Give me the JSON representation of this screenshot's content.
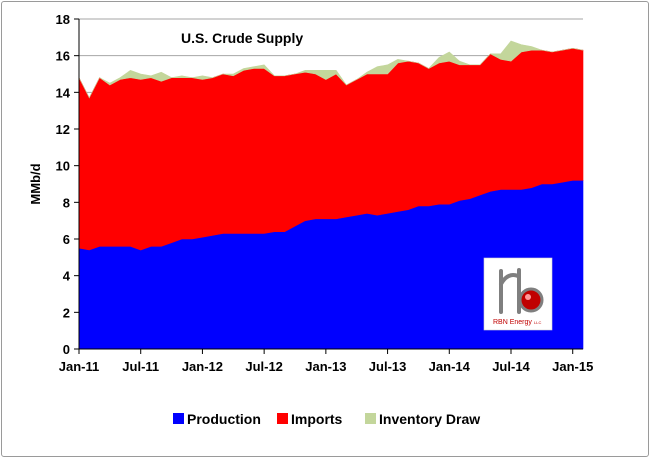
{
  "chart_data": {
    "type": "area",
    "stacked": true,
    "title": "U.S. Crude Supply",
    "ylabel": "MMb/d",
    "xlabel": "",
    "ylim": [
      0,
      18
    ],
    "yticks": [
      0,
      2,
      4,
      6,
      8,
      10,
      12,
      14,
      16,
      18
    ],
    "grid": "horizontal",
    "legend_position": "bottom",
    "x_tick_labels": [
      "Jan-11",
      "Jul-11",
      "Jan-12",
      "Jul-12",
      "Jan-13",
      "Jul-13",
      "Jan-14",
      "Jul-14",
      "Jan-15"
    ],
    "x": [
      "2011-01",
      "2011-02",
      "2011-03",
      "2011-04",
      "2011-05",
      "2011-06",
      "2011-07",
      "2011-08",
      "2011-09",
      "2011-10",
      "2011-11",
      "2011-12",
      "2012-01",
      "2012-02",
      "2012-03",
      "2012-04",
      "2012-05",
      "2012-06",
      "2012-07",
      "2012-08",
      "2012-09",
      "2012-10",
      "2012-11",
      "2012-12",
      "2013-01",
      "2013-02",
      "2013-03",
      "2013-04",
      "2013-05",
      "2013-06",
      "2013-07",
      "2013-08",
      "2013-09",
      "2013-10",
      "2013-11",
      "2013-12",
      "2014-01",
      "2014-02",
      "2014-03",
      "2014-04",
      "2014-05",
      "2014-06",
      "2014-07",
      "2014-08",
      "2014-09",
      "2014-10",
      "2014-11",
      "2014-12",
      "2015-01",
      "2015-02"
    ],
    "series": [
      {
        "name": "Production",
        "color": "#0000ff",
        "values": [
          5.5,
          5.4,
          5.6,
          5.6,
          5.6,
          5.6,
          5.4,
          5.6,
          5.6,
          5.8,
          6.0,
          6.0,
          6.1,
          6.2,
          6.3,
          6.3,
          6.3,
          6.3,
          6.3,
          6.4,
          6.4,
          6.7,
          7.0,
          7.1,
          7.1,
          7.1,
          7.2,
          7.3,
          7.4,
          7.3,
          7.4,
          7.5,
          7.6,
          7.8,
          7.8,
          7.9,
          7.9,
          8.1,
          8.2,
          8.4,
          8.6,
          8.7,
          8.7,
          8.7,
          8.8,
          9.0,
          9.0,
          9.1,
          9.2,
          9.2
        ]
      },
      {
        "name": "Imports",
        "color": "#ff0000",
        "values": [
          9.3,
          8.3,
          9.2,
          8.8,
          9.1,
          9.2,
          9.3,
          9.2,
          9.0,
          9.0,
          8.8,
          8.8,
          8.6,
          8.6,
          8.7,
          8.6,
          8.9,
          9.0,
          9.0,
          8.5,
          8.5,
          8.3,
          8.1,
          7.9,
          7.6,
          7.9,
          7.2,
          7.4,
          7.6,
          7.7,
          7.6,
          8.1,
          8.1,
          7.8,
          7.5,
          7.7,
          7.8,
          7.4,
          7.3,
          7.1,
          7.5,
          7.1,
          7.0,
          7.5,
          7.5,
          7.3,
          7.2,
          7.2,
          7.2,
          7.1
        ]
      },
      {
        "name": "Inventory Draw",
        "color": "#c3d69b",
        "values": [
          0,
          0,
          0,
          0.1,
          0.1,
          0.4,
          0.3,
          0.1,
          0.5,
          0,
          0.1,
          0,
          0.2,
          0,
          0,
          0.1,
          0.1,
          0.1,
          0.2,
          0,
          0,
          0,
          0.1,
          0.2,
          0.5,
          0.2,
          0,
          0,
          0.1,
          0.4,
          0.5,
          0.2,
          0,
          0,
          0,
          0.3,
          0.5,
          0.2,
          0,
          0,
          0,
          0.3,
          1.1,
          0.4,
          0.2,
          0,
          0,
          0,
          0,
          0
        ]
      }
    ]
  },
  "logo": {
    "text": "RBN Energy",
    "suffix": "LLC"
  }
}
